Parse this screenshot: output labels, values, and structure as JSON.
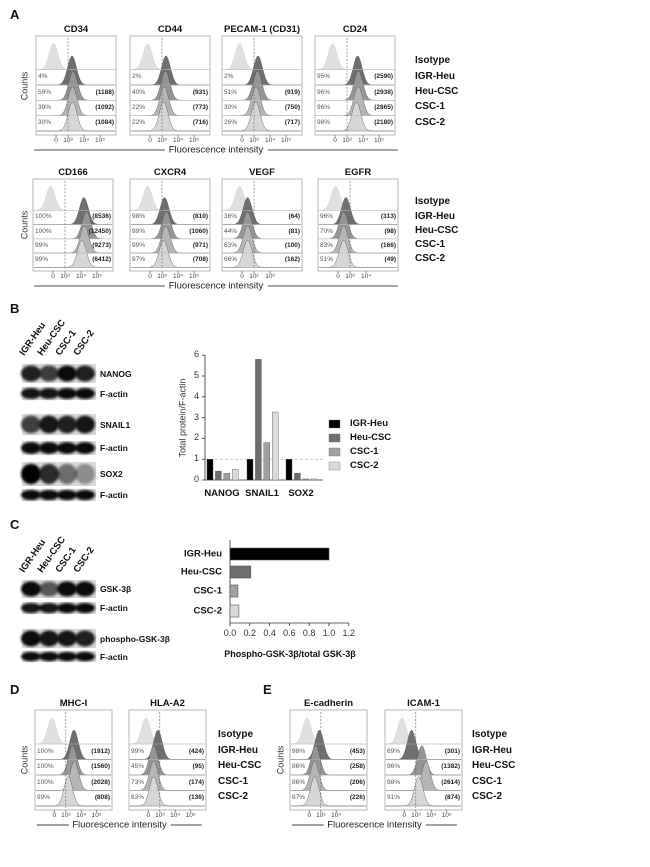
{
  "figure_labels": [
    "A",
    "B",
    "C",
    "D",
    "E"
  ],
  "flow": {
    "ylabel": "Counts",
    "xlabel": "Fluorescence intensity",
    "legend": [
      "Isotype",
      "IGR-Heu",
      "Heu-CSC",
      "CSC-1",
      "CSC-2"
    ],
    "panels": [
      {
        "title": "CD34",
        "ticks": [
          "0",
          "10³",
          "10⁴",
          "10⁵"
        ],
        "rows": [
          {
            "pct": "4%",
            "mfi": ""
          },
          {
            "pct": "59%",
            "mfi": "(1188)"
          },
          {
            "pct": "39%",
            "mfi": "(1092)"
          },
          {
            "pct": "30%",
            "mfi": "(1084)"
          }
        ]
      },
      {
        "title": "CD44",
        "ticks": [
          "0",
          "10³",
          "10⁴",
          "10⁵"
        ],
        "rows": [
          {
            "pct": "2%",
            "mfi": ""
          },
          {
            "pct": "40%",
            "mfi": "(931)"
          },
          {
            "pct": "22%",
            "mfi": "(773)"
          },
          {
            "pct": "22%",
            "mfi": "(716)"
          }
        ]
      },
      {
        "title": "PECAM-1 (CD31)",
        "ticks": [
          "0",
          "10³",
          "10⁴",
          "10⁵"
        ],
        "rows": [
          {
            "pct": "2%",
            "mfi": ""
          },
          {
            "pct": "51%",
            "mfi": "(919)"
          },
          {
            "pct": "30%",
            "mfi": "(750)"
          },
          {
            "pct": "26%",
            "mfi": "(717)"
          }
        ]
      },
      {
        "title": "CD24",
        "ticks": [
          "0",
          "10³",
          "10⁴",
          "10⁵"
        ],
        "rows": [
          {
            "pct": "95%",
            "mfi": "(2590)"
          },
          {
            "pct": "96%",
            "mfi": "(2938)"
          },
          {
            "pct": "96%",
            "mfi": "(2865)"
          },
          {
            "pct": "98%",
            "mfi": "(2180)"
          }
        ]
      },
      {
        "title": "CD166",
        "ticks": [
          "0",
          "10³",
          "10⁴",
          "10⁵"
        ],
        "rows": [
          {
            "pct": "100%",
            "mfi": "(8536)"
          },
          {
            "pct": "100%",
            "mfi": "(12450)"
          },
          {
            "pct": "99%",
            "mfi": "(9273)"
          },
          {
            "pct": "99%",
            "mfi": "(6412)"
          }
        ]
      },
      {
        "title": "CXCR4",
        "ticks": [
          "0",
          "10³",
          "10⁴",
          "10⁵"
        ],
        "rows": [
          {
            "pct": "98%",
            "mfi": "(810)"
          },
          {
            "pct": "99%",
            "mfi": "(1060)"
          },
          {
            "pct": "99%",
            "mfi": "(971)"
          },
          {
            "pct": "97%",
            "mfi": "(708)"
          }
        ]
      },
      {
        "title": "VEGF",
        "ticks": [
          "0",
          "10²",
          "10³"
        ],
        "rows": [
          {
            "pct": "36%",
            "mfi": "(64)"
          },
          {
            "pct": "44%",
            "mfi": "(81)"
          },
          {
            "pct": "63%",
            "mfi": "(100)"
          },
          {
            "pct": "66%",
            "mfi": "(162)"
          }
        ]
      },
      {
        "title": "EGFR",
        "ticks": [
          "0",
          "10³",
          "10⁴"
        ],
        "rows": [
          {
            "pct": "96%",
            "mfi": "(313)"
          },
          {
            "pct": "70%",
            "mfi": "(98)"
          },
          {
            "pct": "83%",
            "mfi": "(166)"
          },
          {
            "pct": "51%",
            "mfi": "(49)"
          }
        ]
      },
      {
        "title": "MHC-I",
        "ticks": [
          "0",
          "10³",
          "10⁴",
          "10⁵"
        ],
        "rows": [
          {
            "pct": "100%",
            "mfi": "(1912)"
          },
          {
            "pct": "100%",
            "mfi": "(1560)"
          },
          {
            "pct": "100%",
            "mfi": "(2028)"
          },
          {
            "pct": "99%",
            "mfi": "(808)"
          }
        ]
      },
      {
        "title": "HLA-A2",
        "ticks": [
          "0",
          "10³",
          "10⁴",
          "10⁵"
        ],
        "rows": [
          {
            "pct": "99%",
            "mfi": "(424)"
          },
          {
            "pct": "45%",
            "mfi": "(95)"
          },
          {
            "pct": "73%",
            "mfi": "(174)"
          },
          {
            "pct": "63%",
            "mfi": "(136)"
          }
        ]
      },
      {
        "title": "E-cadherin",
        "ticks": [
          "0",
          "10³",
          "10⁴"
        ],
        "rows": [
          {
            "pct": "98%",
            "mfi": "(453)"
          },
          {
            "pct": "86%",
            "mfi": "(258)"
          },
          {
            "pct": "86%",
            "mfi": "(206)"
          },
          {
            "pct": "87%",
            "mfi": "(226)"
          }
        ]
      },
      {
        "title": "ICAM-1",
        "ticks": [
          "0",
          "10³",
          "10⁴",
          "10⁵"
        ],
        "rows": [
          {
            "pct": "69%",
            "mfi": "(301)"
          },
          {
            "pct": "96%",
            "mfi": "(1382)"
          },
          {
            "pct": "98%",
            "mfi": "(2614)"
          },
          {
            "pct": "91%",
            "mfi": "(874)"
          }
        ]
      }
    ],
    "colors": [
      "#e0e0e0",
      "#6f6f6f",
      "#959595",
      "#b5b5b5",
      "#d6d6d6"
    ]
  },
  "blots": {
    "lanes": [
      "IGR-Heu",
      "Heu-CSC",
      "CSC-1",
      "CSC-2"
    ],
    "B": [
      "NANOG",
      "F-actin",
      "SNAIL1",
      "F-actin",
      "SOX2",
      "F-actin"
    ],
    "C": [
      "GSK-3β",
      "F-actin",
      "phospho-GSK-3β",
      "F-actin"
    ]
  },
  "chart_data": [
    {
      "type": "bar",
      "categories": [
        "NANOG",
        "SNAIL1",
        "SOX2"
      ],
      "series": [
        {
          "name": "IGR-Heu",
          "values": [
            1.0,
            1.0,
            1.0
          ],
          "color": "#000000"
        },
        {
          "name": "Heu-CSC",
          "values": [
            0.43,
            5.8,
            0.33
          ],
          "color": "#6e6e6e"
        },
        {
          "name": "CSC-1",
          "values": [
            0.32,
            1.8,
            0.05
          ],
          "color": "#a0a0a0"
        },
        {
          "name": "CSC-2",
          "values": [
            0.52,
            3.27,
            0.05
          ],
          "color": "#dadada"
        }
      ],
      "ylabel": "Total protein/F-actin",
      "ylim": [
        0,
        6
      ],
      "yticks": [
        "0",
        "1",
        "2",
        "3",
        "4",
        "5",
        "6"
      ],
      "reference_line": 1,
      "legend": "right"
    },
    {
      "type": "bar",
      "orientation": "horizontal",
      "categories": [
        "IGR-Heu",
        "Heu-CSC",
        "CSC-1",
        "CSC-2"
      ],
      "values": [
        1.0,
        0.21,
        0.08,
        0.09
      ],
      "colors": [
        "#000000",
        "#6e6e6e",
        "#a0a0a0",
        "#dadada"
      ],
      "xlabel": "Phospho-GSK-3β/total GSK-3β",
      "xlim": [
        0,
        1.2
      ],
      "xticks": [
        "0.0",
        "0.2",
        "0.4",
        "0.6",
        "0.8",
        "1.0",
        "1.2"
      ]
    }
  ]
}
